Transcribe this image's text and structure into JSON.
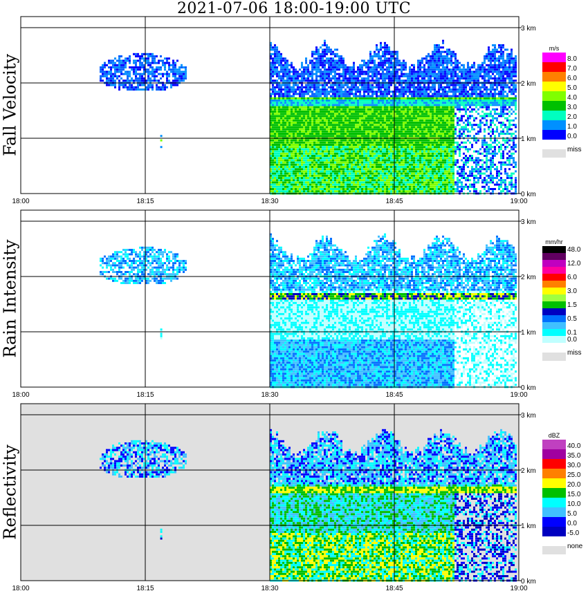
{
  "title": "2021-07-06   18:00-19:00 UTC",
  "chart_data": {
    "type": "heatmap",
    "title": "2021-07-06   18:00-19:00 UTC",
    "x_ticks": [
      "18:00",
      "18:15",
      "18:30",
      "18:45",
      "19:00"
    ],
    "x_range": [
      "18:00",
      "19:00"
    ],
    "y_ticks": [
      "0 km",
      "1 km",
      "2 km",
      "3 km"
    ],
    "y_range_km": [
      0,
      3
    ],
    "grid": true,
    "panels": [
      {
        "name": "Fall Velocity",
        "unit": "m/s",
        "background": "#ffffff",
        "color_levels": [
          {
            "label": "8.0",
            "color": "#ff00ff"
          },
          {
            "label": "7.0",
            "color": "#ff0000"
          },
          {
            "label": "6.0",
            "color": "#ff8000"
          },
          {
            "label": "5.0",
            "color": "#ffff00"
          },
          {
            "label": "4.0",
            "color": "#80ff00"
          },
          {
            "label": "3.0",
            "color": "#00c000"
          },
          {
            "label": "2.0",
            "color": "#00ffc0"
          },
          {
            "label": "1.0",
            "color": "#0090ff"
          },
          {
            "label": "0.0",
            "color": "#0000ff"
          }
        ],
        "missing_label": "miss"
      },
      {
        "name": "Rain Intensity",
        "unit": "mm/hr",
        "background": "#ffffff",
        "color_levels": [
          {
            "label": "48.0",
            "color": "#000000"
          },
          {
            "label": "",
            "color": "#600060"
          },
          {
            "label": "12.0",
            "color": "#c000c0"
          },
          {
            "label": "",
            "color": "#ff00a0"
          },
          {
            "label": "6.0",
            "color": "#ff0000"
          },
          {
            "label": "",
            "color": "#ff8000"
          },
          {
            "label": "3.0",
            "color": "#ffff00"
          },
          {
            "label": "",
            "color": "#a0ff40"
          },
          {
            "label": "1.5",
            "color": "#00c000"
          },
          {
            "label": "",
            "color": "#0000c0"
          },
          {
            "label": "0.5",
            "color": "#0070ff"
          },
          {
            "label": "",
            "color": "#40c0ff"
          },
          {
            "label": "0.1",
            "color": "#00ffff"
          },
          {
            "label": "0.0",
            "color": "#c0ffff"
          }
        ],
        "missing_label": "miss"
      },
      {
        "name": "Reflectivity",
        "unit": "dBZ",
        "background": "#e0e0e0",
        "color_levels": [
          {
            "label": "40.0",
            "color": "#c040c0"
          },
          {
            "label": "35.0",
            "color": "#a000a0"
          },
          {
            "label": "30.0",
            "color": "#ff0000"
          },
          {
            "label": "25.0",
            "color": "#ff8000"
          },
          {
            "label": "20.0",
            "color": "#ffff00"
          },
          {
            "label": "15.0",
            "color": "#00c000"
          },
          {
            "label": "10.0",
            "color": "#00ffff"
          },
          {
            "label": "5.0",
            "color": "#40c0ff"
          },
          {
            "label": "0.0",
            "color": "#0000ff"
          },
          {
            "label": "-5.0",
            "color": "#0000c0"
          }
        ],
        "missing_label": "none"
      }
    ]
  }
}
